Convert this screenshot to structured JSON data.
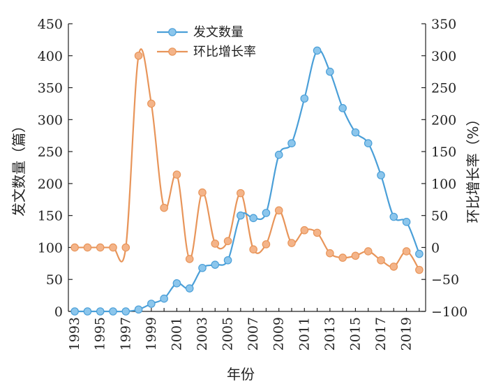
{
  "chart_data": {
    "type": "line",
    "x": [
      1993,
      1994,
      1995,
      1996,
      1997,
      1998,
      1999,
      2000,
      2001,
      2002,
      2003,
      2004,
      2005,
      2006,
      2007,
      2008,
      2009,
      2010,
      2011,
      2012,
      2013,
      2014,
      2015,
      2016,
      2017,
      2018,
      2019,
      2020
    ],
    "xticks": [
      "1993",
      "1995",
      "1997",
      "1999",
      "2001",
      "2003",
      "2005",
      "2007",
      "2009",
      "2011",
      "2013",
      "2015",
      "2017",
      "2019"
    ],
    "xlabel": "年份",
    "ylabel_left": "发文数量（篇）",
    "ylabel_right": "环比增长率（%）",
    "ylim_left": [
      0,
      450
    ],
    "ylim_right": [
      -100,
      350
    ],
    "yticks_left": [
      "0",
      "50",
      "100",
      "150",
      "200",
      "250",
      "300",
      "350",
      "400",
      "450"
    ],
    "yticks_right": [
      "−100",
      "−50",
      "0",
      "50",
      "100",
      "150",
      "200",
      "250",
      "300",
      "350"
    ],
    "legend_position": "top-center",
    "grid": false,
    "series": [
      {
        "name": "发文数量",
        "axis": "left",
        "color": "#4a9fd8",
        "marker_fill": "#8cc6ec",
        "values": [
          0,
          0,
          0,
          0,
          0,
          3,
          12,
          20,
          44,
          36,
          68,
          73,
          80,
          150,
          146,
          154,
          245,
          263,
          333,
          408,
          375,
          318,
          280,
          263,
          213,
          148,
          140,
          90
        ]
      },
      {
        "name": "环比增长率",
        "axis": "right",
        "color": "#e8955a",
        "marker_fill": "#f4b489",
        "values": [
          0,
          0,
          0,
          0,
          0,
          300,
          225,
          62,
          114,
          -18,
          86,
          6,
          10,
          85,
          -3,
          5,
          58,
          7,
          27,
          23,
          -9,
          -16,
          -13,
          -6,
          -20,
          -30,
          -6,
          -35
        ]
      }
    ]
  }
}
